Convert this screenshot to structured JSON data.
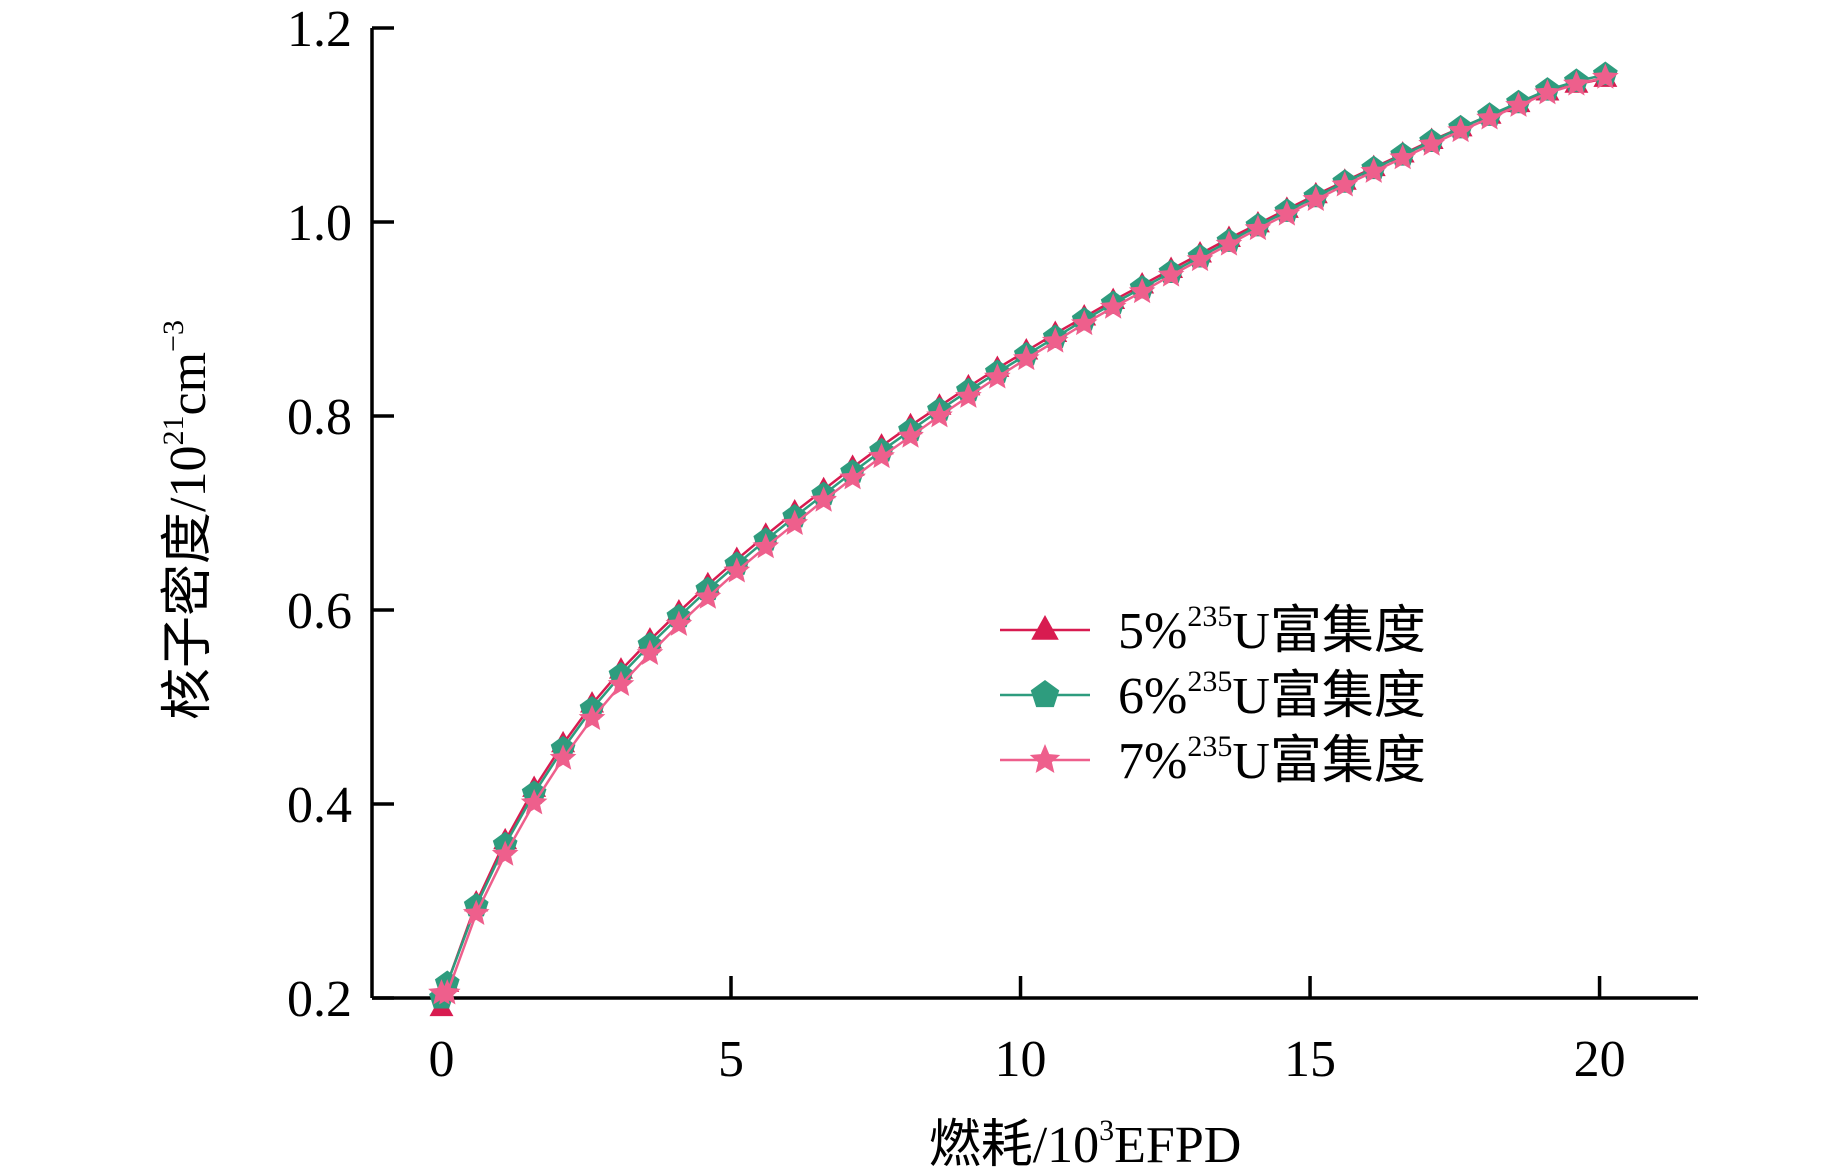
{
  "chart_data": {
    "type": "line",
    "title": "",
    "xlabel": {
      "main": "燃耗/10",
      "sup": "3",
      "suffix": "EFPD"
    },
    "ylabel": {
      "main": "核子密度/10",
      "sup": "21",
      "mid": "cm",
      "sup2": "−3"
    },
    "xlim": [
      -1.2,
      21.7
    ],
    "ylim": [
      0.2,
      1.2
    ],
    "xticks": [
      0,
      5,
      10,
      15,
      20
    ],
    "xtick_labels": [
      "0",
      "5",
      "10",
      "15",
      "20"
    ],
    "yticks": [
      0.2,
      0.4,
      0.6,
      0.8,
      1.0,
      1.2
    ],
    "ytick_labels": [
      "0.2",
      "0.4",
      "0.6",
      "0.8",
      "1.0",
      "1.2"
    ],
    "grid": false,
    "legend_position": "center-right",
    "x": [
      0,
      0.1,
      0.6,
      1.1,
      1.6,
      2.1,
      2.6,
      3.1,
      3.6,
      4.1,
      4.6,
      5.1,
      5.6,
      6.1,
      6.6,
      7.1,
      7.6,
      8.1,
      8.6,
      9.1,
      9.6,
      10.1,
      10.6,
      11.1,
      11.6,
      12.1,
      12.6,
      13.1,
      13.6,
      14.1,
      14.6,
      15.1,
      15.6,
      16.1,
      16.6,
      17.1,
      17.6,
      18.1,
      18.6,
      19.1,
      19.6,
      20.1
    ],
    "series": [
      {
        "name_parts": {
          "prefix": "5%",
          "sup": "235",
          "suffix": "U富集度"
        },
        "color": "#d81b50",
        "marker": "triangle",
        "values": [
          0.19,
          0.215,
          0.298,
          0.362,
          0.416,
          0.462,
          0.503,
          0.538,
          0.569,
          0.598,
          0.626,
          0.652,
          0.677,
          0.701,
          0.724,
          0.747,
          0.769,
          0.79,
          0.81,
          0.83,
          0.849,
          0.867,
          0.885,
          0.902,
          0.919,
          0.935,
          0.951,
          0.967,
          0.983,
          0.998,
          1.013,
          1.028,
          1.042,
          1.056,
          1.07,
          1.084,
          1.097,
          1.11,
          1.122,
          1.134,
          1.142,
          1.148
        ]
      },
      {
        "name_parts": {
          "prefix": "6%",
          "sup": "235",
          "suffix": "U富集度"
        },
        "color": "#2e9c7e",
        "marker": "pentagon",
        "values": [
          0.2,
          0.215,
          0.295,
          0.358,
          0.411,
          0.457,
          0.498,
          0.533,
          0.564,
          0.593,
          0.621,
          0.647,
          0.672,
          0.696,
          0.719,
          0.742,
          0.764,
          0.785,
          0.806,
          0.826,
          0.845,
          0.863,
          0.881,
          0.899,
          0.916,
          0.932,
          0.948,
          0.964,
          0.98,
          0.996,
          1.011,
          1.026,
          1.041,
          1.055,
          1.069,
          1.083,
          1.097,
          1.11,
          1.123,
          1.136,
          1.145,
          1.152
        ]
      },
      {
        "name_parts": {
          "prefix": "7%",
          "sup": "235",
          "suffix": "U富集度"
        },
        "color": "#ee5f8c",
        "marker": "star",
        "values": [
          0.205,
          0.205,
          0.287,
          0.348,
          0.401,
          0.447,
          0.488,
          0.523,
          0.555,
          0.585,
          0.613,
          0.64,
          0.665,
          0.689,
          0.713,
          0.736,
          0.758,
          0.779,
          0.8,
          0.82,
          0.84,
          0.859,
          0.877,
          0.895,
          0.912,
          0.928,
          0.945,
          0.961,
          0.977,
          0.993,
          1.008,
          1.023,
          1.038,
          1.052,
          1.066,
          1.08,
          1.094,
          1.107,
          1.12,
          1.133,
          1.142,
          1.149
        ]
      }
    ]
  }
}
